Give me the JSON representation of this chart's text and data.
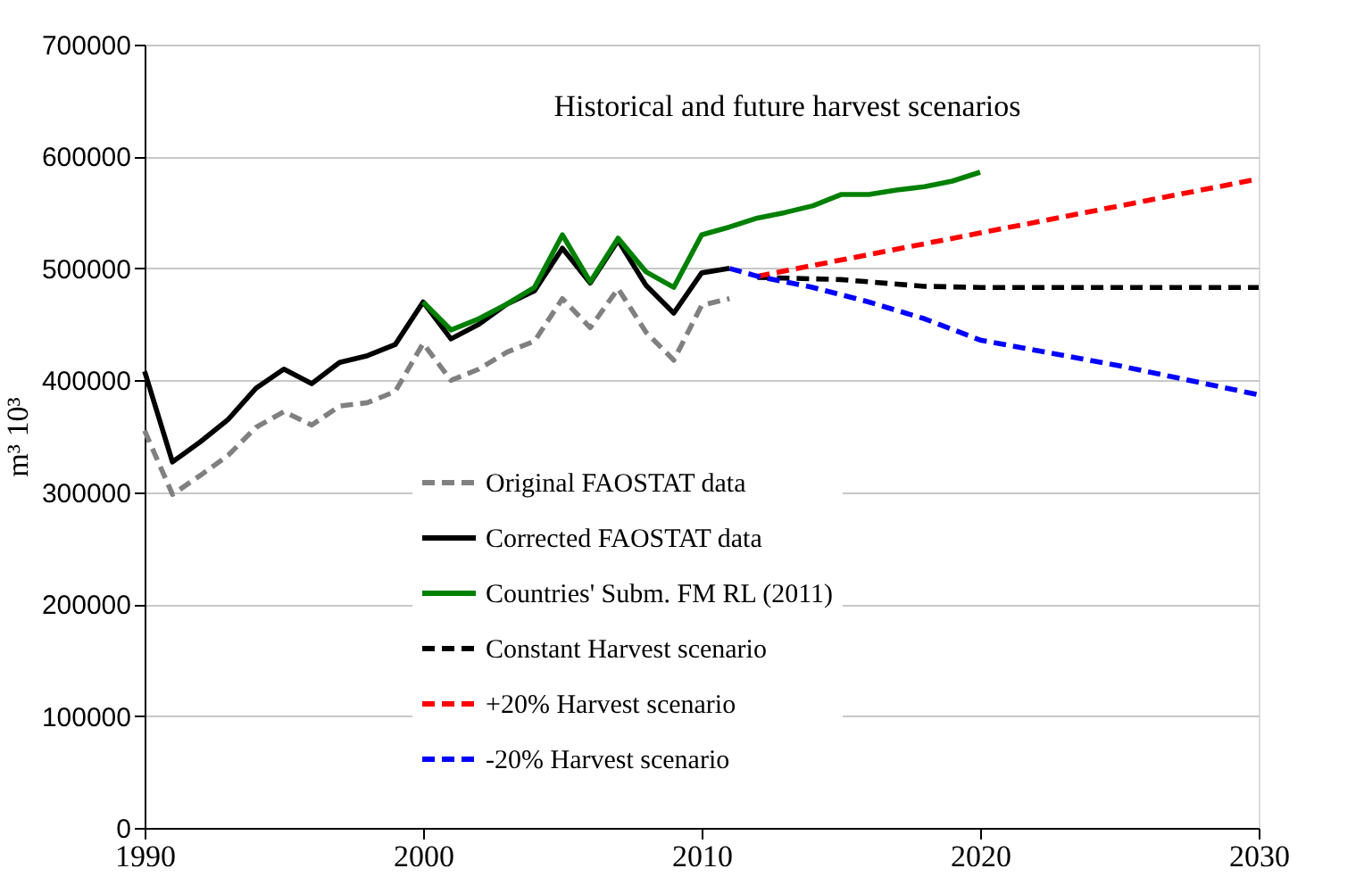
{
  "chart_data": {
    "type": "line",
    "title": "Historical and future harvest scenarios",
    "ylabel": "m³ 10³",
    "xlim": [
      1990,
      2030
    ],
    "xticks": [
      1990,
      2000,
      2010,
      2020,
      2030
    ],
    "ylim": [
      0,
      700000
    ],
    "yticks": [
      0,
      100000,
      200000,
      300000,
      400000,
      500000,
      600000,
      700000
    ],
    "grid": "y",
    "legend": "bottom",
    "marker": "none",
    "series": [
      {
        "name": "Original FAOSTAT data",
        "color": "#808080",
        "line_style": "dashed",
        "x": [
          1990,
          1991,
          1992,
          1993,
          1994,
          1995,
          1996,
          1997,
          1998,
          1999,
          2000,
          2001,
          2002,
          2003,
          2004,
          2005,
          2006,
          2007,
          2008,
          2009,
          2010,
          2011
        ],
        "values": [
          355000,
          298000,
          315000,
          333000,
          358000,
          372000,
          360000,
          377000,
          380000,
          390000,
          433000,
          400000,
          410000,
          425000,
          435000,
          473000,
          447000,
          482000,
          443000,
          418000,
          467000,
          473000
        ]
      },
      {
        "name": "Corrected FAOSTAT data",
        "color": "#000000",
        "line_style": "solid",
        "x": [
          1990,
          1991,
          1992,
          1993,
          1994,
          1995,
          1996,
          1997,
          1998,
          1999,
          2000,
          2001,
          2002,
          2003,
          2004,
          2005,
          2006,
          2007,
          2008,
          2009,
          2010,
          2011
        ],
        "values": [
          408000,
          327000,
          345000,
          365000,
          393000,
          410000,
          397000,
          416000,
          422000,
          432000,
          470000,
          437000,
          450000,
          468000,
          480000,
          518000,
          487000,
          525000,
          485000,
          460000,
          496000,
          500000
        ]
      },
      {
        "name": "Countries' Subm. FM RL (2011)",
        "color": "#008000",
        "line_style": "solid",
        "x": [
          2000,
          2001,
          2002,
          2003,
          2004,
          2005,
          2006,
          2007,
          2008,
          2009,
          2010,
          2011,
          2012,
          2013,
          2014,
          2015,
          2016,
          2017,
          2018,
          2019,
          2020
        ],
        "values": [
          470000,
          445000,
          455000,
          468000,
          483000,
          530000,
          488000,
          527000,
          497000,
          483000,
          530000,
          537000,
          545000,
          550000,
          556000,
          566000,
          566000,
          570000,
          573000,
          578000,
          586000
        ]
      },
      {
        "name": "Constant Harvest scenario",
        "color": "#000000",
        "line_style": "dashed",
        "x": [
          2012,
          2015,
          2018,
          2020,
          2030
        ],
        "values": [
          492000,
          490000,
          484000,
          483000,
          483000
        ]
      },
      {
        "name": "+20% Harvest scenario",
        "color": "#ff0000",
        "line_style": "dashed",
        "x": [
          2012,
          2030
        ],
        "values": [
          493000,
          580000
        ]
      },
      {
        "name": "-20% Harvest scenario",
        "color": "#0000ff",
        "line_style": "dashed",
        "x": [
          2011,
          2012,
          2014,
          2016,
          2018,
          2020,
          2025,
          2030
        ],
        "values": [
          500000,
          493000,
          483000,
          470000,
          455000,
          436000,
          413000,
          387000
        ]
      }
    ]
  }
}
